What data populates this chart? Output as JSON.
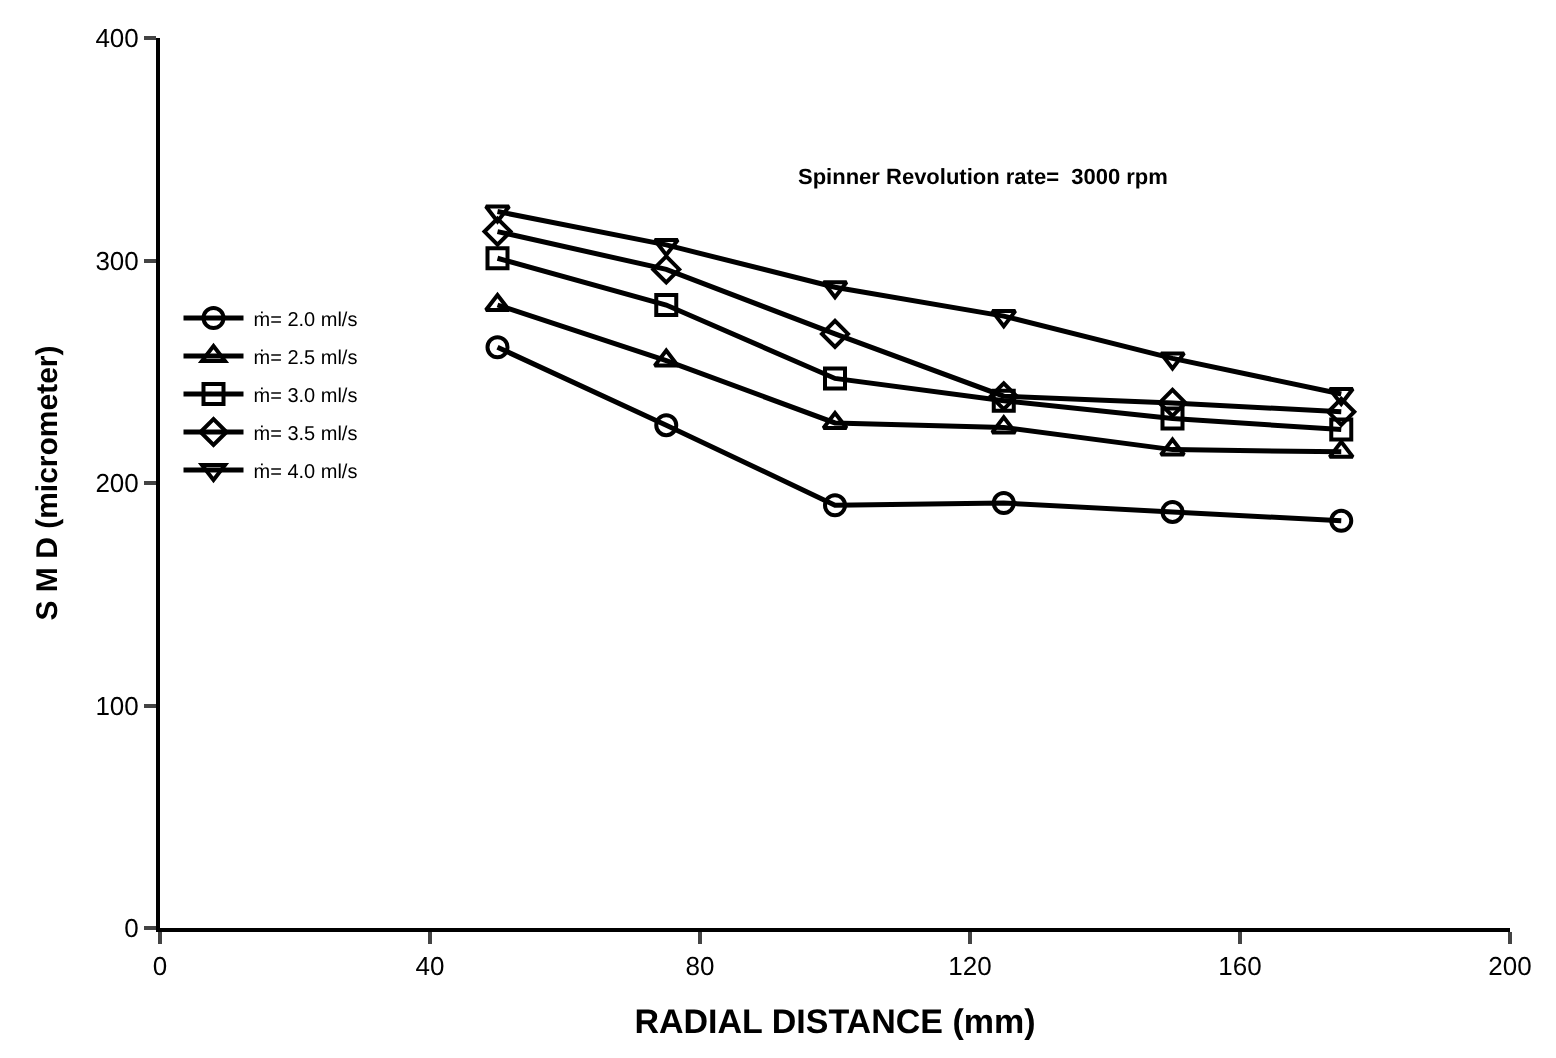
{
  "chart_data": {
    "type": "line",
    "xlabel": "RADIAL DISTANCE (mm)",
    "ylabel": "S M D (micrometer)",
    "annotations": [
      "Spinner Revolution rate=  3000 rpm"
    ],
    "x": [
      50,
      75,
      100,
      125,
      150,
      175
    ],
    "series": [
      {
        "name": "ṁ= 2.0 ml/s",
        "color": "#000000",
        "marker": "circle",
        "values": [
          261,
          226,
          190,
          191,
          187,
          183
        ]
      },
      {
        "name": "ṁ= 2.5 ml/s",
        "color": "#000000",
        "marker": "triangle",
        "values": [
          280,
          255,
          227,
          225,
          215,
          214
        ]
      },
      {
        "name": "ṁ= 3.0 ml/s",
        "color": "#000000",
        "marker": "square",
        "values": [
          301,
          280,
          247,
          237,
          229,
          224
        ]
      },
      {
        "name": "ṁ= 3.5 ml/s",
        "color": "#000000",
        "marker": "diamond",
        "values": [
          313,
          296,
          267,
          239,
          236,
          232
        ]
      },
      {
        "name": "ṁ= 4.0 ml/s",
        "color": "#000000",
        "marker": "triangle-down",
        "values": [
          322,
          307,
          288,
          275,
          256,
          240
        ]
      }
    ],
    "xlim": [
      0,
      200
    ],
    "xticks": [
      0,
      40,
      80,
      120,
      160,
      200
    ],
    "ylim": [
      0,
      400
    ],
    "yticks": [
      0,
      100,
      200,
      300,
      400
    ],
    "legend": "left",
    "line_style": "solid"
  }
}
